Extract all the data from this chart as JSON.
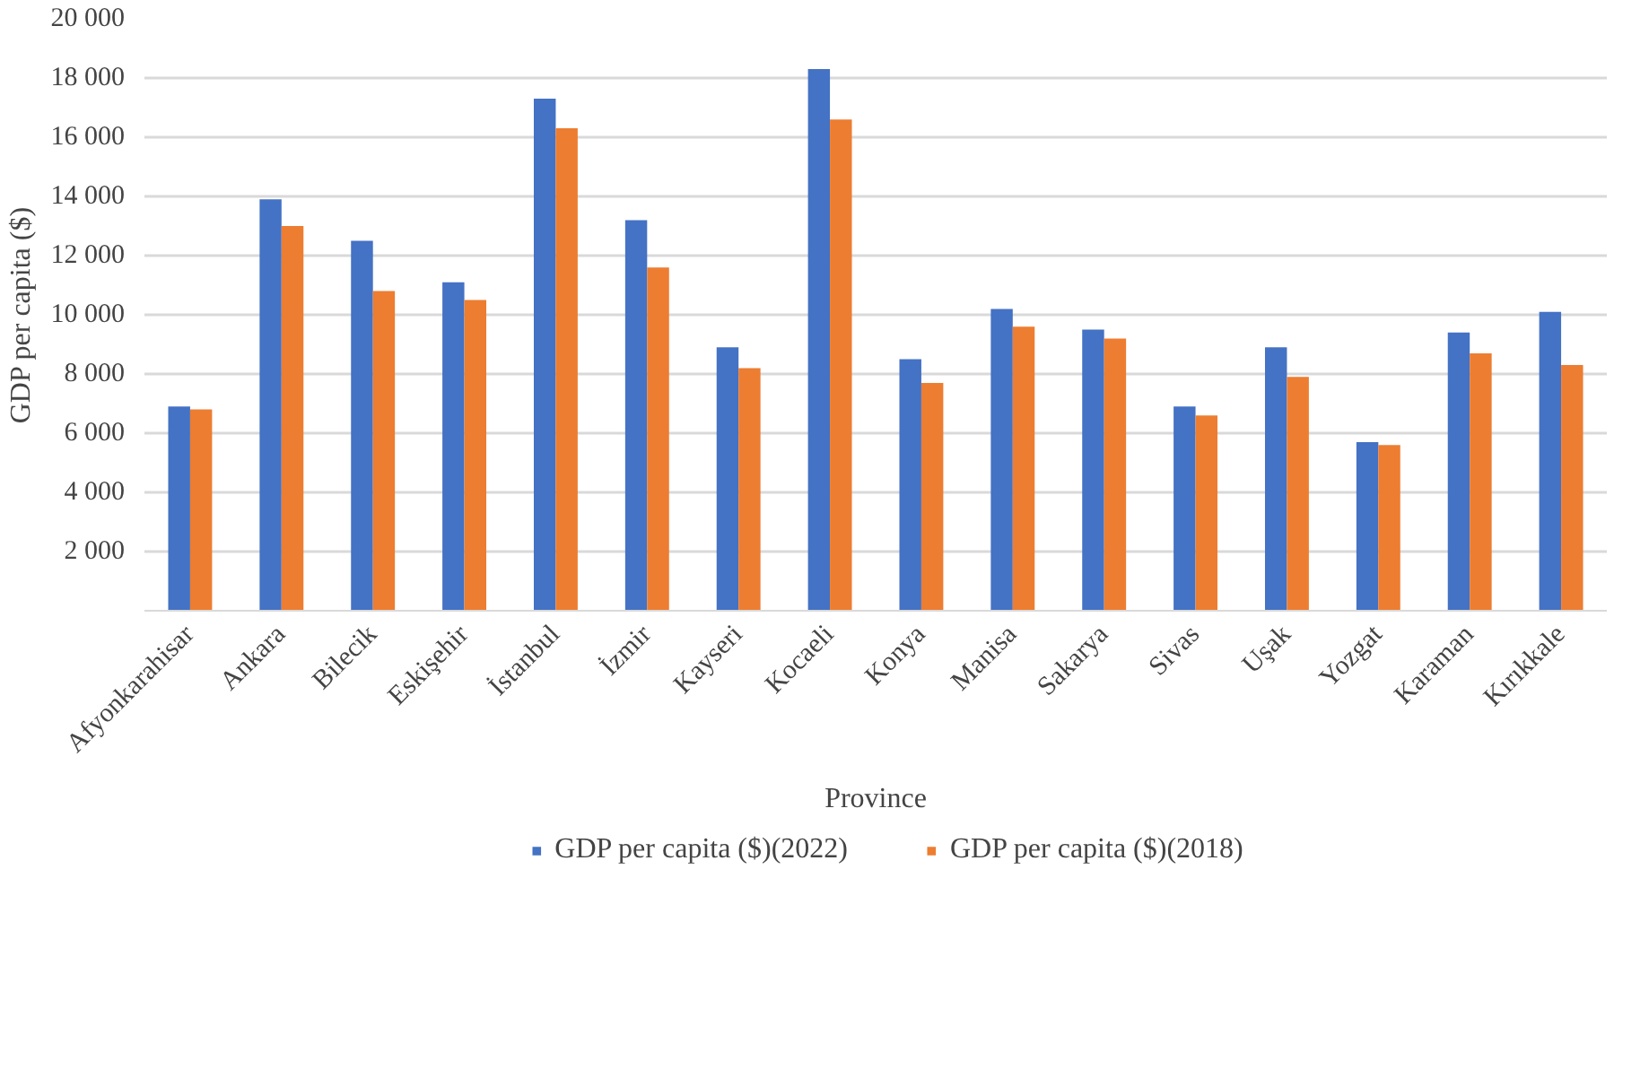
{
  "chart_data": {
    "type": "bar",
    "xlabel": "Province",
    "ylabel": "GDP per capita ($)",
    "categories": [
      "Afyonkarahisar",
      "Ankara",
      "Bilecik",
      "Eskişehir",
      "İstanbul",
      "İzmir",
      "Kayseri",
      "Kocaeli",
      "Konya",
      "Manisa",
      "Sakarya",
      "Sivas",
      "Uşak",
      "Yozgat",
      "Karaman",
      "Kırıkkale"
    ],
    "series": [
      {
        "name": "GDP per capita ($)(2022)",
        "color": "#4472c4",
        "values": [
          6900,
          13900,
          12500,
          11100,
          17300,
          13200,
          8900,
          18300,
          8500,
          10200,
          9500,
          6900,
          8900,
          5700,
          9400,
          10100
        ]
      },
      {
        "name": "GDP per capita ($)(2018)",
        "color": "#ed7d31",
        "values": [
          6800,
          13000,
          10800,
          10500,
          16300,
          11600,
          8200,
          16600,
          7700,
          9600,
          9200,
          6600,
          7900,
          5600,
          8700,
          8300
        ]
      }
    ],
    "ylim": [
      0,
      20000
    ],
    "yticks": [
      {
        "value": 0,
        "label": null
      },
      {
        "value": 2000,
        "label": "2 000"
      },
      {
        "value": 4000,
        "label": "4 000"
      },
      {
        "value": 6000,
        "label": "6 000"
      },
      {
        "value": 8000,
        "label": "8 000"
      },
      {
        "value": 10000,
        "label": "10 000"
      },
      {
        "value": 12000,
        "label": "12 000"
      },
      {
        "value": 14000,
        "label": "14 000"
      },
      {
        "value": 16000,
        "label": "16 000"
      },
      {
        "value": 18000,
        "label": "18 000"
      },
      {
        "value": 20000,
        "label": "20 000"
      }
    ],
    "grid": "y",
    "legend": "bottom"
  }
}
